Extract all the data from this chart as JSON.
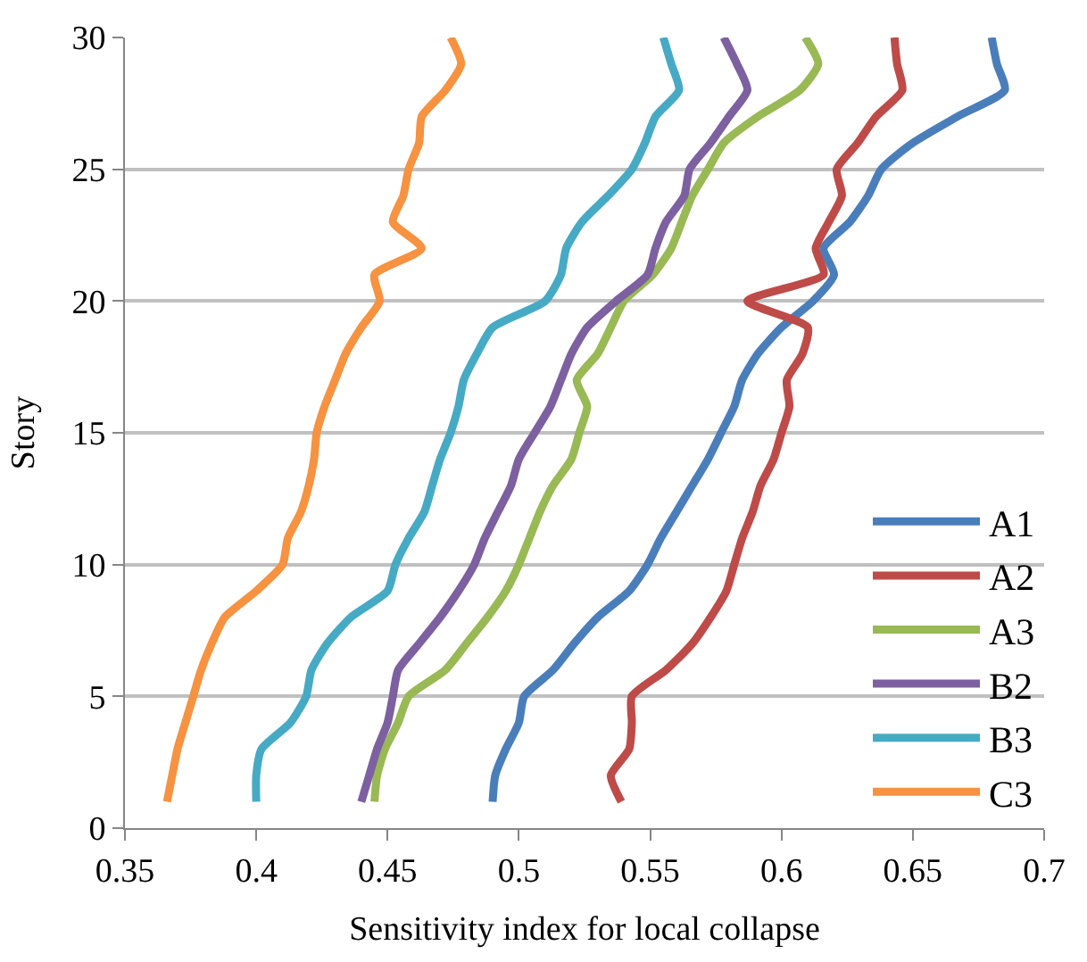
{
  "chart_data": {
    "type": "line",
    "orientation": "horizontal",
    "xlabel": "Sensitivity index for local collapse",
    "ylabel": "Story",
    "x": [
      1,
      2,
      3,
      4,
      5,
      6,
      7,
      8,
      9,
      10,
      11,
      12,
      13,
      14,
      15,
      16,
      17,
      18,
      19,
      20,
      21,
      22,
      23,
      24,
      25,
      26,
      27,
      28,
      29,
      30
    ],
    "series": [
      {
        "name": "A1",
        "color": "#4a7ebb",
        "values": [
          0.49,
          0.491,
          0.495,
          0.5,
          0.502,
          0.513,
          0.521,
          0.53,
          0.542,
          0.549,
          0.554,
          0.56,
          0.566,
          0.572,
          0.577,
          0.582,
          0.585,
          0.591,
          0.6,
          0.612,
          0.62,
          0.616,
          0.626,
          0.633,
          0.638,
          0.65,
          0.667,
          0.685,
          0.682,
          0.68
        ]
      },
      {
        "name": "A2",
        "color": "#be4b48",
        "values": [
          0.539,
          0.535,
          0.542,
          0.543,
          0.543,
          0.556,
          0.566,
          0.573,
          0.579,
          0.582,
          0.585,
          0.589,
          0.592,
          0.597,
          0.6,
          0.603,
          0.602,
          0.608,
          0.61,
          0.587,
          0.616,
          0.613,
          0.618,
          0.623,
          0.621,
          0.629,
          0.636,
          0.646,
          0.644,
          0.643
        ]
      },
      {
        "name": "A3",
        "color": "#98b954",
        "values": [
          0.445,
          0.446,
          0.449,
          0.454,
          0.458,
          0.472,
          0.48,
          0.488,
          0.495,
          0.5,
          0.504,
          0.508,
          0.513,
          0.52,
          0.523,
          0.526,
          0.522,
          0.53,
          0.535,
          0.54,
          0.551,
          0.558,
          0.562,
          0.566,
          0.572,
          0.578,
          0.591,
          0.607,
          0.614,
          0.609
        ]
      },
      {
        "name": "B2",
        "color": "#7d60a0",
        "values": [
          0.44,
          0.443,
          0.446,
          0.45,
          0.452,
          0.454,
          0.462,
          0.47,
          0.477,
          0.483,
          0.487,
          0.492,
          0.497,
          0.5,
          0.506,
          0.512,
          0.516,
          0.52,
          0.526,
          0.537,
          0.549,
          0.552,
          0.556,
          0.563,
          0.565,
          0.573,
          0.58,
          0.587,
          0.583,
          0.578
        ]
      },
      {
        "name": "B3",
        "color": "#46aac5",
        "values": [
          0.4,
          0.4,
          0.402,
          0.413,
          0.419,
          0.421,
          0.427,
          0.436,
          0.45,
          0.453,
          0.458,
          0.464,
          0.467,
          0.47,
          0.474,
          0.477,
          0.479,
          0.484,
          0.49,
          0.51,
          0.516,
          0.518,
          0.524,
          0.534,
          0.543,
          0.548,
          0.552,
          0.561,
          0.558,
          0.555
        ]
      },
      {
        "name": "C3",
        "color": "#f69240",
        "values": [
          0.366,
          0.368,
          0.37,
          0.373,
          0.376,
          0.379,
          0.383,
          0.388,
          0.4,
          0.41,
          0.412,
          0.417,
          0.42,
          0.422,
          0.423,
          0.426,
          0.43,
          0.434,
          0.44,
          0.447,
          0.445,
          0.463,
          0.452,
          0.456,
          0.458,
          0.462,
          0.463,
          0.472,
          0.478,
          0.474
        ]
      }
    ],
    "xlim": [
      0.35,
      0.7
    ],
    "xticks": [
      {
        "value": 0.35,
        "label": "0.35"
      },
      {
        "value": 0.4,
        "label": "0.4"
      },
      {
        "value": 0.45,
        "label": "0.45"
      },
      {
        "value": 0.5,
        "label": "0.5"
      },
      {
        "value": 0.55,
        "label": "0.55"
      },
      {
        "value": 0.6,
        "label": "0.6"
      },
      {
        "value": 0.65,
        "label": "0.65"
      },
      {
        "value": 0.7,
        "label": "0.7"
      }
    ],
    "ylim": [
      0,
      30
    ],
    "yticks": [
      0,
      5,
      10,
      15,
      20,
      25,
      30
    ],
    "grid": "y",
    "legend": "bottom right",
    "marker": "none",
    "line_style": "solid"
  }
}
